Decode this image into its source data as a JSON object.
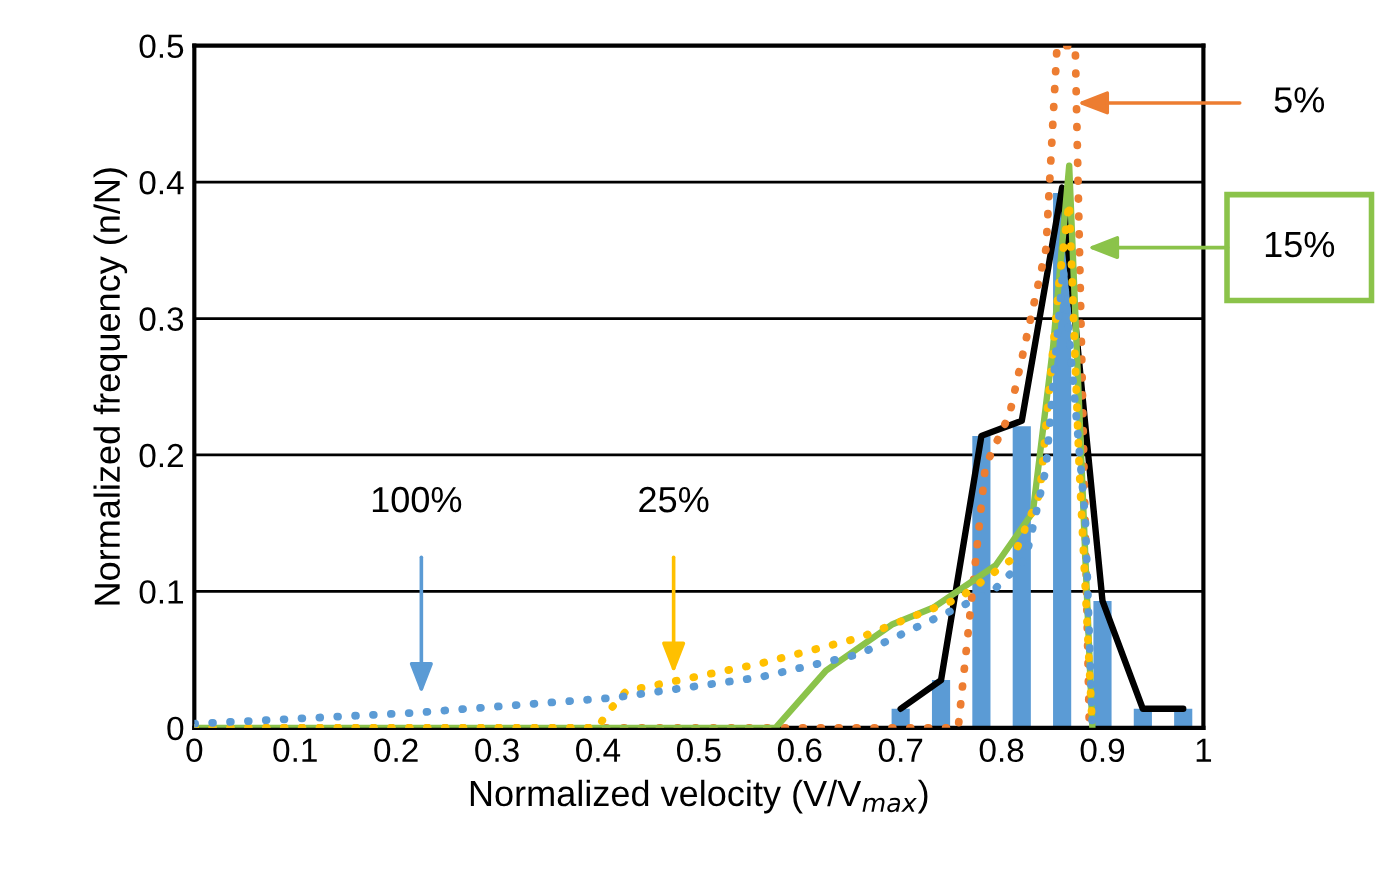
{
  "chart_data": {
    "type": "line",
    "xlabel": "Normalized velocity (V/V$_{max}$)",
    "ylabel": "Normalized frequency (n/N)",
    "xlim": [
      0,
      1
    ],
    "xticks": [
      0,
      0.1,
      0.2,
      0.3,
      0.4,
      0.5,
      0.6,
      0.7,
      0.8,
      0.9,
      1
    ],
    "ylim": [
      0,
      0.5
    ],
    "yticks": [
      0,
      0.1,
      0.2,
      0.3,
      0.4,
      0.5
    ],
    "grid": "y",
    "legend": false,
    "marker": "none",
    "series": [
      {
        "type": "bar",
        "color": "#5b9bd5",
        "x": [
          0.7,
          0.74,
          0.78,
          0.82,
          0.86,
          0.9,
          0.94,
          0.98
        ],
        "values": [
          0.014,
          0.035,
          0.214,
          0.221,
          0.392,
          0.093,
          0.014,
          0.014
        ]
      },
      {
        "color": "#000000",
        "line_style": "solid",
        "x": [
          0.7,
          0.74,
          0.78,
          0.82,
          0.86,
          0.9,
          0.94,
          0.98
        ],
        "values": [
          0.014,
          0.035,
          0.214,
          0.225,
          0.396,
          0.093,
          0.014,
          0.014
        ]
      },
      {
        "color": "#ed7d31",
        "line_style": "dotted",
        "x": [
          0,
          0.6,
          0.757,
          0.784,
          0.808,
          0.844,
          0.855,
          0.873,
          0.887
        ],
        "values": [
          0,
          0,
          0,
          0.192,
          0.23,
          0.351,
          0.5,
          0.5,
          0
        ]
      },
      {
        "color": "#8bc34a",
        "line_style": "solid",
        "x": [
          0,
          0.576,
          0.626,
          0.692,
          0.732,
          0.794,
          0.831,
          0.851,
          0.867,
          0.89
        ],
        "values": [
          0,
          0,
          0.042,
          0.076,
          0.088,
          0.119,
          0.158,
          0.279,
          0.412,
          0
        ]
      },
      {
        "color": "#ffc000",
        "line_style": "dotted",
        "x": [
          0,
          0.4,
          0.408,
          0.428,
          0.56,
          0.659,
          0.758,
          0.811,
          0.838,
          0.857,
          0.867,
          0.877,
          0.89
        ],
        "values": [
          0,
          0,
          0.01,
          0.027,
          0.047,
          0.066,
          0.095,
          0.124,
          0.172,
          0.327,
          0.385,
          0.19,
          0
        ]
      },
      {
        "color": "#5b9bd5",
        "line_style": "dotted",
        "x": [
          0,
          0.217,
          0.415,
          0.56,
          0.659,
          0.791,
          0.824,
          0.844,
          0.861,
          0.883,
          0.89
        ],
        "values": [
          0.003,
          0.011,
          0.022,
          0.037,
          0.054,
          0.1,
          0.124,
          0.19,
          0.337,
          0.153,
          0
        ]
      }
    ],
    "annotations": [
      "5%",
      "15%",
      "25%",
      "100%"
    ]
  }
}
